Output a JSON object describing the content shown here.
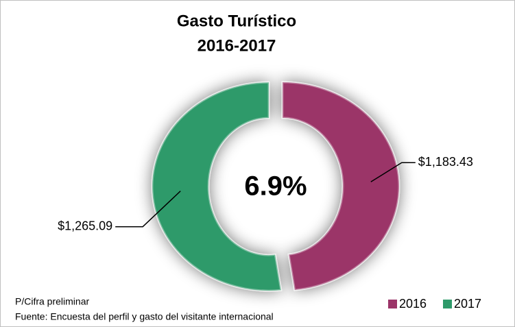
{
  "chart_data": {
    "type": "donut",
    "title": [
      "Gasto Turístico",
      "2016-2017"
    ],
    "center_label": "6.9%",
    "categories": [
      "2016",
      "2017"
    ],
    "values": [
      1183.43,
      1265.09
    ],
    "value_labels": [
      "$1,183.43",
      "$1,265.09"
    ],
    "colors": [
      "#9b3468",
      "#2e9a6a"
    ],
    "notes": [
      "P/Cifra preliminar",
      "Fuente: Encuesta del perfil y gasto del visitante internacional"
    ],
    "legend": "bottom-right"
  }
}
